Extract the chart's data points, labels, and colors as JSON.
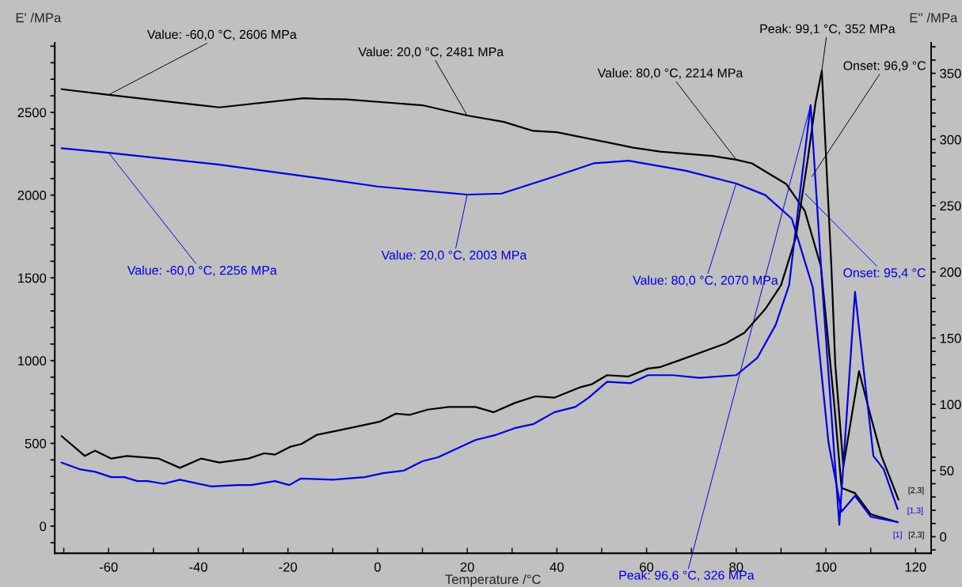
{
  "chart_data": {
    "type": "line",
    "xlabel": "Temperature /°C",
    "ylabel": "E' /MPa",
    "y2label": "E'' /MPa",
    "xlim": [
      -72,
      123.5
    ],
    "ylim": [
      -164,
      2920
    ],
    "y2lim": [
      -12.5,
      373
    ],
    "xticks": [
      {
        "value": -70,
        "label": null
      },
      -60,
      {
        "value": -50,
        "label": null
      },
      -40,
      {
        "value": -30,
        "label": null
      },
      -20,
      {
        "value": -10,
        "label": null
      },
      0,
      {
        "value": 10,
        "label": null
      },
      20,
      {
        "value": 30,
        "label": null
      },
      40,
      {
        "value": 50,
        "label": null
      },
      60,
      {
        "value": 70,
        "label": null
      },
      80,
      {
        "value": 90,
        "label": null
      },
      100,
      {
        "value": 110,
        "label": null
      },
      120
    ],
    "yticks": [
      {
        "value": -100,
        "label": null
      },
      0,
      {
        "value": 100,
        "label": null
      },
      {
        "value": 200,
        "label": null
      },
      {
        "value": 300,
        "label": null
      },
      {
        "value": 400,
        "label": null
      },
      500,
      {
        "value": 600,
        "label": null
      },
      {
        "value": 700,
        "label": null
      },
      {
        "value": 800,
        "label": null
      },
      {
        "value": 900,
        "label": null
      },
      1000,
      {
        "value": 1100,
        "label": null
      },
      {
        "value": 1200,
        "label": null
      },
      {
        "value": 1300,
        "label": null
      },
      {
        "value": 1400,
        "label": null
      },
      1500,
      {
        "value": 1600,
        "label": null
      },
      {
        "value": 1700,
        "label": null
      },
      {
        "value": 1800,
        "label": null
      },
      {
        "value": 1900,
        "label": null
      },
      2000,
      {
        "value": 2100,
        "label": null
      },
      {
        "value": 2200,
        "label": null
      },
      {
        "value": 2300,
        "label": null
      },
      {
        "value": 2400,
        "label": null
      },
      2500,
      {
        "value": 2600,
        "label": null
      },
      {
        "value": 2700,
        "label": null
      },
      {
        "value": 2800,
        "label": null
      },
      {
        "value": 2900,
        "label": null
      }
    ],
    "y2ticks": [
      {
        "value": -10,
        "label": null
      },
      0,
      {
        "value": 10,
        "label": null
      },
      {
        "value": 20,
        "label": null
      },
      {
        "value": 30,
        "label": null
      },
      {
        "value": 40,
        "label": null
      },
      50,
      {
        "value": 60,
        "label": null
      },
      {
        "value": 70,
        "label": null
      },
      {
        "value": 80,
        "label": null
      },
      {
        "value": 90,
        "label": null
      },
      100,
      {
        "value": 110,
        "label": null
      },
      {
        "value": 120,
        "label": null
      },
      {
        "value": 130,
        "label": null
      },
      {
        "value": 140,
        "label": null
      },
      150,
      {
        "value": 160,
        "label": null
      },
      {
        "value": 170,
        "label": null
      },
      {
        "value": 180,
        "label": null
      },
      {
        "value": 190,
        "label": null
      },
      200,
      {
        "value": 210,
        "label": null
      },
      {
        "value": 220,
        "label": null
      },
      {
        "value": 230,
        "label": null
      },
      {
        "value": 240,
        "label": null
      },
      250,
      {
        "value": 260,
        "label": null
      },
      {
        "value": 270,
        "label": null
      },
      {
        "value": 280,
        "label": null
      },
      {
        "value": 290,
        "label": null
      },
      300,
      {
        "value": 310,
        "label": null
      },
      {
        "value": 320,
        "label": null
      },
      {
        "value": 330,
        "label": null
      },
      {
        "value": 340,
        "label": null
      },
      350,
      {
        "value": 360,
        "label": null
      },
      {
        "value": 370,
        "label": null
      }
    ],
    "grid": false,
    "line_style": "solid",
    "series": [
      {
        "color": "#000000",
        "x": [
          -70.5,
          -60,
          -35.3,
          -16.5,
          -13.5,
          -7,
          10,
          20,
          28.2,
          34.7,
          40,
          57,
          63,
          74.7,
          80,
          83.5,
          91.2,
          95.3,
          98.9,
          101.8,
          103.5,
          106.5,
          110,
          116
        ],
        "values": [
          2640,
          2606,
          2530,
          2586,
          2582,
          2578,
          2543,
          2481,
          2442,
          2388,
          2380,
          2287,
          2263,
          2237,
          2214,
          2192,
          2066,
          1905,
          1569,
          756,
          231,
          199,
          72,
          24
        ]
      },
      {
        "color": "#0000e0",
        "x": [
          -70.5,
          -60,
          -35.3,
          -10,
          0,
          20,
          27.6,
          39.4,
          48.2,
          56,
          68.8,
          80,
          86.5,
          92.4,
          97.1,
          100.6,
          103.5,
          106.5,
          110,
          116
        ],
        "values": [
          2283,
          2256,
          2184,
          2091,
          2052,
          2003,
          2009,
          2112,
          2192,
          2208,
          2147,
          2070,
          2000,
          1857,
          1440,
          502,
          87,
          183,
          57,
          24
        ]
      },
      {
        "color": "#000000",
        "axis": "y2",
        "x": [
          -70.5,
          -65.3,
          -63,
          -59.4,
          -55.9,
          -48.8,
          -44.1,
          -39.4,
          -35.3,
          -28.8,
          -25.3,
          -22.9,
          -19.4,
          -17,
          -13.5,
          -7.7,
          0.6,
          4.1,
          7.1,
          11.2,
          15.9,
          21.8,
          25.9,
          30.6,
          35.2,
          39.4,
          45.3,
          47.7,
          51.2,
          55.9,
          60.3,
          62.9,
          67.1,
          77.7,
          81.8,
          86.5,
          90,
          93.3,
          96,
          97.7,
          99.1,
          101.2,
          102.1,
          103.9,
          107.4,
          110,
          112.4,
          116.2
        ],
        "values": [
          76,
          61,
          65,
          59,
          61,
          59,
          52,
          59,
          56,
          59,
          63,
          62,
          68,
          70,
          77,
          81,
          87,
          93,
          92,
          96,
          98,
          98,
          94,
          101,
          106,
          105,
          113,
          115,
          122,
          121,
          127,
          128,
          133,
          146,
          154,
          172,
          190,
          226,
          286,
          328,
          352,
          206,
          130,
          53,
          125,
          91,
          61,
          28
        ]
      },
      {
        "color": "#0000e0",
        "axis": "y2",
        "x": [
          -70.5,
          -66.5,
          -63,
          -59.4,
          -56.5,
          -53.6,
          -51.3,
          -47.7,
          -44.1,
          -37.1,
          -31.2,
          -28.2,
          -22.9,
          -19.7,
          -17.1,
          -10,
          -2.9,
          1.2,
          5.9,
          10,
          13.5,
          21.8,
          26.5,
          30.6,
          34.7,
          39.4,
          44.1,
          47.1,
          51.2,
          56.5,
          60.3,
          65.9,
          71.8,
          80,
          84.7,
          88.8,
          91.8,
          94.1,
          96.6,
          99.3,
          103,
          106.5,
          108.3,
          110.6,
          112.9,
          116
        ],
        "values": [
          56,
          51,
          49,
          45,
          45,
          42,
          42,
          40,
          43,
          38,
          39,
          39,
          42,
          39,
          44,
          43,
          45,
          48,
          50,
          57,
          60,
          73,
          77,
          82,
          85,
          94,
          98,
          105,
          117,
          116,
          122,
          122,
          120,
          122,
          135,
          160,
          190,
          256,
          326,
          184,
          9,
          185,
          130,
          61,
          51,
          21
        ]
      }
    ],
    "annotations": [
      {
        "text": "Value: -60,0 °C, 2606 MPa",
        "x": -60,
        "y": 2606
      },
      {
        "text": "Value: 20,0 °C, 2481 MPa",
        "x": 20,
        "y": 2481
      },
      {
        "text": "Value: 80,0 °C, 2214 MPa",
        "x": 80,
        "y": 2214
      },
      {
        "text": "Peak: 99,1 °C, 352 MPa",
        "x": 99.1,
        "y": 2753
      },
      {
        "text": "Onset: 96,9 °C",
        "x": 96.9,
        "y": 2112
      },
      {
        "text": "Value: -60,0 °C, 2256 MPa",
        "x": -60,
        "y": 2256
      },
      {
        "text": "Value: 20,0 °C, 2003 MPa",
        "x": 20,
        "y": 2003
      },
      {
        "text": "Value: 80,0 °C, 2070 MPa",
        "x": 80,
        "y": 2070
      },
      {
        "text": "Onset: 95,4 °C",
        "x": 95.4,
        "y": 2009
      },
      {
        "text": "Peak: 96,6 °C, 326 MPa",
        "x": 96.6,
        "y": 2545
      },
      "[2,3]",
      "[1,3]",
      "[1]",
      "[2,3]"
    ]
  }
}
